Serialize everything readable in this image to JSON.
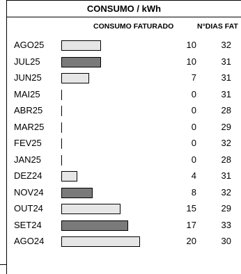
{
  "title": "CONSUMO / kWh",
  "headers": {
    "consumo": "CONSUMO FATURADO",
    "dias": "N°DIAS FAT"
  },
  "rows": [
    {
      "month": "AGO25",
      "value": "10",
      "days": "32",
      "shade": "light"
    },
    {
      "month": "JUL25",
      "value": "10",
      "days": "31",
      "shade": "dark"
    },
    {
      "month": "JUN25",
      "value": "7",
      "days": "31",
      "shade": "light"
    },
    {
      "month": "MAI25",
      "value": "0",
      "days": "31",
      "shade": "light"
    },
    {
      "month": "ABR25",
      "value": "0",
      "days": "28",
      "shade": "light"
    },
    {
      "month": "MAR25",
      "value": "0",
      "days": "29",
      "shade": "light"
    },
    {
      "month": "FEV25",
      "value": "0",
      "days": "32",
      "shade": "light"
    },
    {
      "month": "JAN25",
      "value": "0",
      "days": "28",
      "shade": "light"
    },
    {
      "month": "DEZ24",
      "value": "4",
      "days": "31",
      "shade": "light"
    },
    {
      "month": "NOV24",
      "value": "8",
      "days": "32",
      "shade": "dark"
    },
    {
      "month": "OUT24",
      "value": "15",
      "days": "29",
      "shade": "light"
    },
    {
      "month": "SET24",
      "value": "17",
      "days": "33",
      "shade": "dark"
    },
    {
      "month": "AGO24",
      "value": "20",
      "days": "30",
      "shade": "light"
    }
  ],
  "colors": {
    "light_bar": "#e6e6e6",
    "dark_bar": "#7a7a7a",
    "border": "#000000"
  }
}
